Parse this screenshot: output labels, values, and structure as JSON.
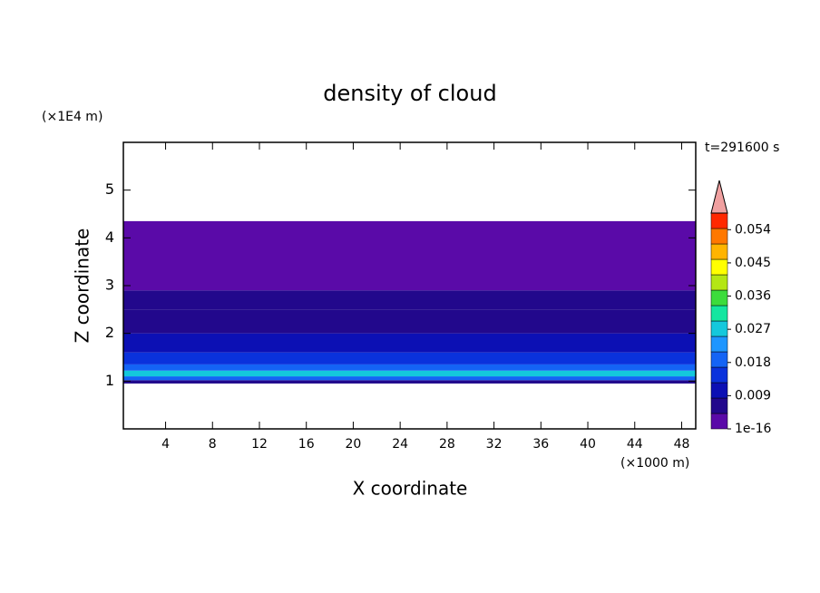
{
  "chart_data": {
    "type": "contour",
    "title": "density of cloud",
    "xlabel": "X coordinate",
    "ylabel": "Z coordinate",
    "x_unit": "(×1000 m)",
    "y_unit": "(×1E4 m)",
    "annotation": "t=291600 s",
    "xlim": [
      0.4,
      49.2
    ],
    "ylim": [
      0,
      6
    ],
    "xticks": [
      4,
      8,
      12,
      16,
      20,
      24,
      28,
      32,
      36,
      40,
      44,
      48
    ],
    "yticks": [
      1,
      2,
      3,
      4,
      5
    ],
    "levels": [
      1e-16,
      0.0045,
      0.009,
      0.0135,
      0.018,
      0.0225,
      0.027,
      0.0315,
      0.036,
      0.0405,
      0.045,
      0.0495,
      0.054,
      0.0585
    ],
    "colors": [
      "#5a0aa8",
      "#22088c",
      "#0c10b4",
      "#0a32dc",
      "#1464f5",
      "#1e96ff",
      "#14c8dc",
      "#14e6a0",
      "#3cdc3c",
      "#b4e614",
      "#ffff00",
      "#ffb400",
      "#ff7800",
      "#ff2800"
    ],
    "extend_color": "#f0a0a0",
    "colorbar_ticks": [
      1e-16,
      0.009,
      0.018,
      0.027,
      0.036,
      0.045,
      0.054
    ],
    "field": {
      "z": [
        0.95,
        1.02,
        1.1,
        1.22,
        1.35,
        1.6,
        2.0,
        2.5,
        2.9,
        4.35
      ],
      "values": [
        0.006,
        0.02,
        0.03,
        0.02,
        0.014,
        0.01,
        0.006,
        0.005,
        0.002
      ]
    }
  }
}
